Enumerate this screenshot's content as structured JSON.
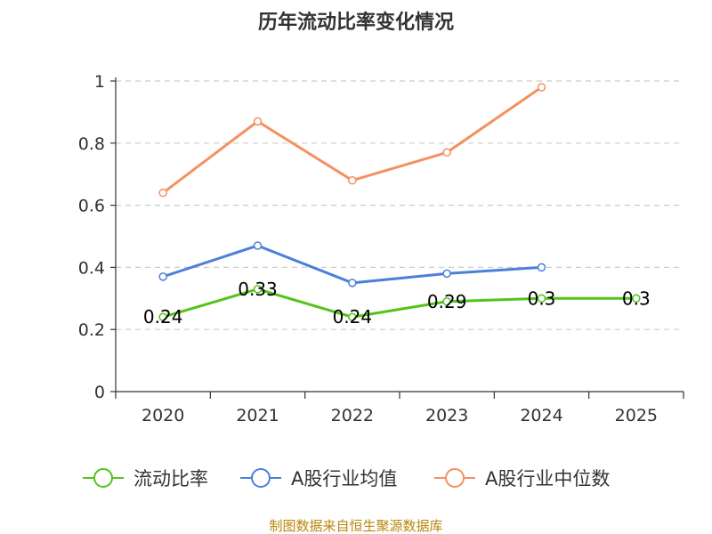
{
  "chart_data": {
    "type": "line",
    "title": "历年流动比率变化情况",
    "categories": [
      "2020",
      "2021",
      "2022",
      "2023",
      "2024",
      "2025"
    ],
    "ylim": [
      0,
      1
    ],
    "yticks": [
      0,
      0.2,
      0.4,
      0.6,
      0.8,
      1
    ],
    "ytick_labels": [
      "0",
      "0.2",
      "0.4",
      "0.6",
      "0.8",
      "1"
    ],
    "grid": true,
    "legend_position": "bottom",
    "series": [
      {
        "name": "流动比率",
        "color": "#52c41a",
        "values": [
          0.24,
          0.33,
          0.24,
          0.29,
          0.3,
          0.3
        ],
        "labels": [
          "0.24",
          "0.33",
          "0.24",
          "0.29",
          "0.3",
          "0.3"
        ]
      },
      {
        "name": "A股行业均值",
        "color": "#4a7fdb",
        "values": [
          0.37,
          0.47,
          0.35,
          0.38,
          0.4,
          null
        ]
      },
      {
        "name": "A股行业中位数",
        "color": "#f59062",
        "values": [
          0.64,
          0.87,
          0.68,
          0.77,
          0.98,
          null
        ]
      }
    ],
    "source": "制图数据来自恒生聚源数据库"
  }
}
